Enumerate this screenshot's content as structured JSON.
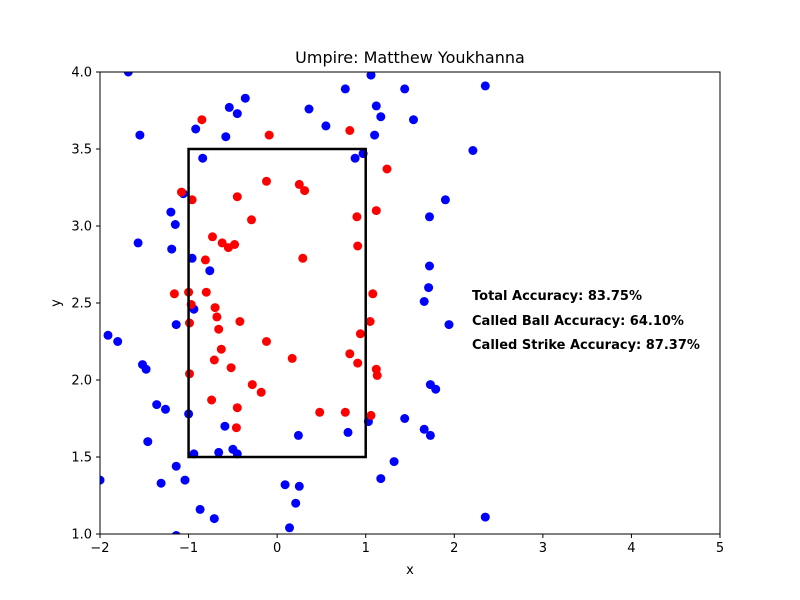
{
  "chart_data": {
    "type": "scatter",
    "title": "Umpire: Matthew Youkhanna",
    "xlabel": "x",
    "ylabel": "y",
    "xlim": [
      -2,
      5
    ],
    "ylim": [
      1.0,
      4.0
    ],
    "x_ticks": [
      -2,
      -1,
      0,
      1,
      2,
      3,
      4,
      5
    ],
    "y_ticks": [
      1.0,
      1.5,
      2.0,
      2.5,
      3.0,
      3.5,
      4.0
    ],
    "x_tick_labels": [
      "−2",
      "−1",
      "0",
      "1",
      "2",
      "3",
      "4",
      "5"
    ],
    "y_tick_labels": [
      "1.0",
      "1.5",
      "2.0",
      "2.5",
      "3.0",
      "3.5",
      "4.0"
    ],
    "strike_zone": {
      "x": [
        -1,
        1
      ],
      "y": [
        1.5,
        3.5
      ]
    },
    "annotations": [
      "Total Accuracy: 83.75%",
      "Called Ball Accuracy: 64.10%",
      "Called Strike Accuracy: 87.37%"
    ],
    "series": [
      {
        "color": "#0000ff",
        "points": [
          [
            -1.68,
            4.0
          ],
          [
            -0.36,
            3.83
          ],
          [
            -0.54,
            3.77
          ],
          [
            -0.45,
            3.73
          ],
          [
            -0.92,
            3.63
          ],
          [
            -0.58,
            3.58
          ],
          [
            -1.55,
            3.59
          ],
          [
            -0.84,
            3.44
          ],
          [
            -1.06,
            3.21
          ],
          [
            -1.2,
            3.09
          ],
          [
            -1.15,
            3.01
          ],
          [
            -1.57,
            2.89
          ],
          [
            -1.19,
            2.85
          ],
          [
            -0.96,
            2.79
          ],
          [
            -0.76,
            2.71
          ],
          [
            -0.94,
            2.46
          ],
          [
            -1.14,
            2.36
          ],
          [
            -1.91,
            2.29
          ],
          [
            -1.8,
            2.25
          ],
          [
            -1.52,
            2.1
          ],
          [
            -1.48,
            2.07
          ],
          [
            -1.36,
            1.84
          ],
          [
            -1.26,
            1.81
          ],
          [
            -1.0,
            1.78
          ],
          [
            -1.46,
            1.6
          ],
          [
            -0.59,
            1.7
          ],
          [
            -0.94,
            1.52
          ],
          [
            -0.66,
            1.53
          ],
          [
            -0.5,
            1.55
          ],
          [
            -0.45,
            1.52
          ],
          [
            -1.14,
            1.44
          ],
          [
            -1.31,
            1.33
          ],
          [
            -1.04,
            1.35
          ],
          [
            -0.87,
            1.16
          ],
          [
            -0.71,
            1.1
          ],
          [
            -1.14,
            0.99
          ],
          [
            -2.0,
            1.35
          ],
          [
            0.09,
            1.32
          ],
          [
            0.25,
            1.31
          ],
          [
            0.21,
            1.2
          ],
          [
            0.14,
            1.04
          ],
          [
            0.24,
            1.64
          ],
          [
            0.36,
            3.76
          ],
          [
            0.55,
            3.65
          ],
          [
            0.77,
            3.89
          ],
          [
            1.06,
            3.98
          ],
          [
            1.12,
            3.78
          ],
          [
            1.17,
            3.71
          ],
          [
            1.1,
            3.59
          ],
          [
            0.88,
            3.44
          ],
          [
            0.97,
            3.47
          ],
          [
            1.44,
            3.89
          ],
          [
            1.54,
            3.69
          ],
          [
            0.8,
            1.66
          ],
          [
            1.03,
            1.73
          ],
          [
            1.17,
            1.36
          ],
          [
            1.32,
            1.47
          ],
          [
            1.44,
            1.75
          ],
          [
            1.66,
            1.68
          ],
          [
            1.73,
            1.64
          ],
          [
            1.73,
            1.97
          ],
          [
            1.79,
            1.94
          ],
          [
            1.72,
            3.06
          ],
          [
            1.9,
            3.17
          ],
          [
            1.72,
            2.74
          ],
          [
            1.71,
            2.6
          ],
          [
            1.66,
            2.51
          ],
          [
            1.94,
            2.36
          ],
          [
            2.21,
            3.49
          ],
          [
            2.35,
            3.91
          ],
          [
            2.35,
            1.11
          ]
        ]
      },
      {
        "color": "#ff0000",
        "points": [
          [
            -0.85,
            3.69
          ],
          [
            -0.09,
            3.59
          ],
          [
            -1.08,
            3.22
          ],
          [
            -0.96,
            3.17
          ],
          [
            -0.45,
            3.19
          ],
          [
            -0.12,
            3.29
          ],
          [
            0.25,
            3.27
          ],
          [
            0.31,
            3.23
          ],
          [
            -0.29,
            3.04
          ],
          [
            -0.73,
            2.93
          ],
          [
            -0.62,
            2.89
          ],
          [
            -0.55,
            2.86
          ],
          [
            -0.48,
            2.88
          ],
          [
            -0.81,
            2.78
          ],
          [
            0.29,
            2.79
          ],
          [
            -1.16,
            2.56
          ],
          [
            -1.0,
            2.57
          ],
          [
            -0.8,
            2.57
          ],
          [
            -0.97,
            2.49
          ],
          [
            -0.7,
            2.47
          ],
          [
            -0.68,
            2.41
          ],
          [
            -0.99,
            2.37
          ],
          [
            -0.42,
            2.38
          ],
          [
            -0.66,
            2.33
          ],
          [
            -0.12,
            2.25
          ],
          [
            -0.63,
            2.2
          ],
          [
            -0.71,
            2.13
          ],
          [
            -0.52,
            2.08
          ],
          [
            0.17,
            2.14
          ],
          [
            -0.99,
            2.04
          ],
          [
            -0.28,
            1.97
          ],
          [
            -0.18,
            1.92
          ],
          [
            -0.74,
            1.87
          ],
          [
            -0.45,
            1.82
          ],
          [
            -0.46,
            1.69
          ],
          [
            0.48,
            1.79
          ],
          [
            0.77,
            1.79
          ],
          [
            1.06,
            1.77
          ],
          [
            0.82,
            3.62
          ],
          [
            1.24,
            3.37
          ],
          [
            1.12,
            3.1
          ],
          [
            0.9,
            3.06
          ],
          [
            0.91,
            2.87
          ],
          [
            1.08,
            2.56
          ],
          [
            1.05,
            2.38
          ],
          [
            0.94,
            2.3
          ],
          [
            0.82,
            2.17
          ],
          [
            0.91,
            2.11
          ],
          [
            1.12,
            2.07
          ],
          [
            1.13,
            2.03
          ]
        ]
      }
    ]
  }
}
